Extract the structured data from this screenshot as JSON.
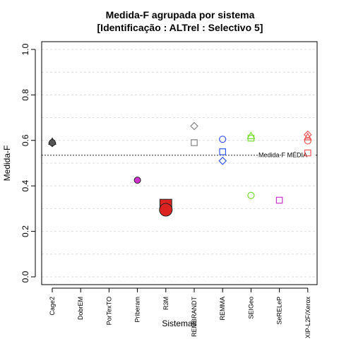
{
  "chart_data": {
    "type": "scatter",
    "title": "Medida-F agrupada por sistema",
    "subtitle": "[Identificação : ALTrel : Selectivo 5]",
    "xlabel": "Sistemas",
    "ylabel": "Medida-F",
    "ylim": [
      0,
      1
    ],
    "yticks": [
      {
        "value": 0.0,
        "label": "0.0"
      },
      {
        "value": 0.2,
        "label": "0.2"
      },
      {
        "value": 0.4,
        "label": "0.4"
      },
      {
        "value": 0.6,
        "label": "0.6"
      },
      {
        "value": 0.8,
        "label": "0.8"
      },
      {
        "value": 1.0,
        "label": "1.0"
      }
    ],
    "grid": true,
    "categories": [
      "Cage2",
      "DobrEM",
      "PorTexTO",
      "Priberam",
      "R3M",
      "REMBRANDT",
      "REMMA",
      "SEIGeo",
      "SeRELeP",
      "XIP-L2F/Xerox"
    ],
    "reference_line": {
      "value": 0.535,
      "label": "Medida-F MÉDIA"
    },
    "points": [
      {
        "category": "Cage2",
        "y": 0.595,
        "shape": "triangle",
        "color": "#555555",
        "filled": true,
        "size": "normal"
      },
      {
        "category": "Cage2",
        "y": 0.588,
        "shape": "diamond",
        "color": "#555555",
        "filled": true,
        "size": "normal"
      },
      {
        "category": "Cage2",
        "y": 0.59,
        "shape": "circle",
        "color": "#555555",
        "filled": true,
        "size": "normal"
      },
      {
        "category": "Priberam",
        "y": 0.425,
        "shape": "circle",
        "color": "#cc33cc",
        "filled": true,
        "size": "normal"
      },
      {
        "category": "R3M",
        "y": 0.315,
        "shape": "square",
        "color": "#dd2222",
        "filled": true,
        "size": "large"
      },
      {
        "category": "R3M",
        "y": 0.295,
        "shape": "circle",
        "color": "#dd2222",
        "filled": true,
        "size": "large"
      },
      {
        "category": "REMBRANDT",
        "y": 0.663,
        "shape": "diamond",
        "color": "#888888",
        "filled": false,
        "size": "normal"
      },
      {
        "category": "REMBRANDT",
        "y": 0.59,
        "shape": "square",
        "color": "#888888",
        "filled": false,
        "size": "normal"
      },
      {
        "category": "REMMA",
        "y": 0.605,
        "shape": "circle",
        "color": "#3355ee",
        "filled": false,
        "size": "normal"
      },
      {
        "category": "REMMA",
        "y": 0.55,
        "shape": "square",
        "color": "#3355ee",
        "filled": false,
        "size": "normal"
      },
      {
        "category": "REMMA",
        "y": 0.51,
        "shape": "diamond",
        "color": "#3355ee",
        "filled": false,
        "size": "normal"
      },
      {
        "category": "SEIGeo",
        "y": 0.62,
        "shape": "triangle",
        "color": "#77dd33",
        "filled": false,
        "size": "normal"
      },
      {
        "category": "SEIGeo",
        "y": 0.61,
        "shape": "square",
        "color": "#77dd33",
        "filled": false,
        "size": "normal"
      },
      {
        "category": "SEIGeo",
        "y": 0.358,
        "shape": "circle",
        "color": "#77dd33",
        "filled": false,
        "size": "normal"
      },
      {
        "category": "SeRELeP",
        "y": 0.337,
        "shape": "square",
        "color": "#cc33cc",
        "filled": false,
        "size": "normal"
      },
      {
        "category": "XIP-L2F/Xerox",
        "y": 0.625,
        "shape": "diamond",
        "color": "#ee5555",
        "filled": false,
        "size": "normal"
      },
      {
        "category": "XIP-L2F/Xerox",
        "y": 0.615,
        "shape": "triangle",
        "color": "#ee5555",
        "filled": false,
        "size": "normal"
      },
      {
        "category": "XIP-L2F/Xerox",
        "y": 0.598,
        "shape": "circle",
        "color": "#ee5555",
        "filled": false,
        "size": "normal"
      },
      {
        "category": "XIP-L2F/Xerox",
        "y": 0.545,
        "shape": "square",
        "color": "#ee5555",
        "filled": false,
        "size": "normal"
      }
    ]
  }
}
